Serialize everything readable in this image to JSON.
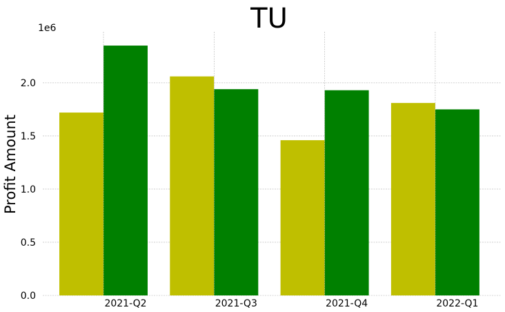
{
  "chart_data": {
    "type": "bar",
    "title": "TU",
    "xlabel": "",
    "ylabel": "Profit Amount",
    "offset_label": "1e6",
    "categories": [
      "2021-Q2",
      "2021-Q3",
      "2021-Q4",
      "2022-Q1"
    ],
    "series": [
      {
        "color": "#bfbf00",
        "values": [
          1.72,
          2.06,
          1.46,
          1.81
        ]
      },
      {
        "color": "#008000",
        "values": [
          2.35,
          1.94,
          1.93,
          1.75
        ]
      }
    ],
    "yticks": [
      "0.0",
      "0.5",
      "1.0",
      "1.5",
      "2.0"
    ],
    "ytick_values": [
      0,
      0.5,
      1.0,
      1.5,
      2.0
    ],
    "ylim": [
      0,
      2.48
    ],
    "grid": true
  }
}
